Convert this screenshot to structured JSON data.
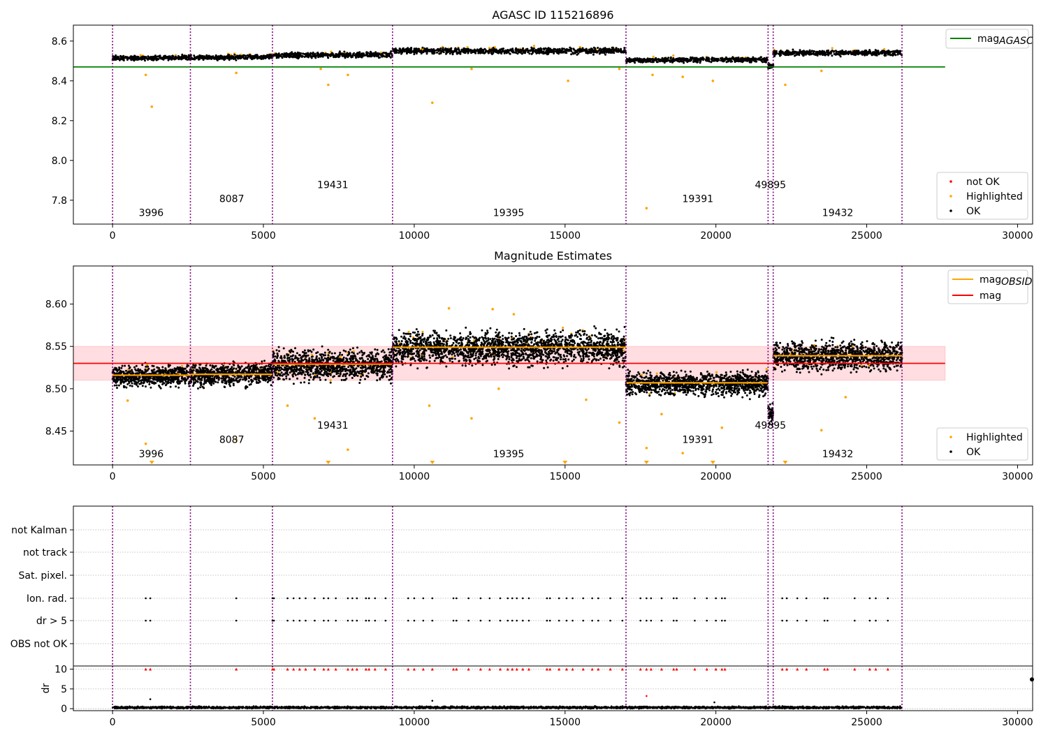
{
  "chart_data": [
    {
      "type": "scatter",
      "title": "AGASC ID 115216896",
      "xlim": [
        -1300,
        30500
      ],
      "ylim": [
        7.68,
        8.68
      ],
      "xticks": [
        0,
        5000,
        10000,
        15000,
        20000,
        25000,
        30000
      ],
      "yticks": [
        7.8,
        8.0,
        8.2,
        8.4,
        8.6
      ],
      "ytick_labels": [
        "7.8",
        "8.0",
        "8.2",
        "8.4",
        "8.6"
      ],
      "obsid_boundaries": [
        0,
        2580,
        5300,
        9280,
        17020,
        21730,
        21900,
        26170
      ],
      "obsid_labels": [
        {
          "text": "3996",
          "x": 1280,
          "y": 7.72
        },
        {
          "text": "8087",
          "x": 3950,
          "y": 7.79
        },
        {
          "text": "19431",
          "x": 7300,
          "y": 7.86
        },
        {
          "text": "19395",
          "x": 13130,
          "y": 7.72
        },
        {
          "text": "19391",
          "x": 19400,
          "y": 7.79
        },
        {
          "text": "49895",
          "x": 21810,
          "y": 7.86
        },
        {
          "text": "19432",
          "x": 24040,
          "y": 7.72
        }
      ],
      "reference_line": {
        "name": "mag",
        "subscript": "AGASC",
        "value": 8.47,
        "x": [
          -1300,
          27600
        ],
        "color": "#008000"
      },
      "segments": [
        {
          "x": [
            0,
            2580
          ],
          "mean": 8.515,
          "slope": 0.004,
          "noise": 0.008
        },
        {
          "x": [
            2580,
            5300
          ],
          "mean": 8.518,
          "slope": 0.005,
          "noise": 0.008
        },
        {
          "x": [
            5300,
            9280
          ],
          "mean": 8.53,
          "slope": 0.004,
          "noise": 0.009
        },
        {
          "x": [
            9280,
            17020
          ],
          "mean": 8.55,
          "slope": 0.0,
          "noise": 0.01
        },
        {
          "x": [
            17020,
            21730
          ],
          "mean": 8.505,
          "slope": 0.003,
          "noise": 0.008
        },
        {
          "x": [
            21730,
            21900
          ],
          "mean": 8.475,
          "slope": 0.0,
          "noise": 0.008
        },
        {
          "x": [
            21900,
            26170
          ],
          "mean": 8.54,
          "slope": 0.0,
          "noise": 0.009
        }
      ],
      "outliers": [
        [
          1100,
          8.43
        ],
        [
          1300,
          8.27
        ],
        [
          4100,
          8.44
        ],
        [
          7150,
          8.38
        ],
        [
          7800,
          8.43
        ],
        [
          10600,
          8.29
        ],
        [
          11900,
          8.46
        ],
        [
          15100,
          8.4
        ],
        [
          17700,
          7.76
        ],
        [
          17900,
          8.43
        ],
        [
          18900,
          8.42
        ],
        [
          19900,
          8.4
        ],
        [
          22300,
          8.38
        ],
        [
          23500,
          8.45
        ],
        [
          6900,
          8.46
        ],
        [
          16800,
          8.46
        ]
      ],
      "legends": [
        {
          "position": "top-right",
          "items": [
            {
              "label": "mag",
              "subscript": "AGASC",
              "kind": "line",
              "color": "#008000"
            }
          ]
        },
        {
          "position": "bottom-right",
          "items": [
            {
              "label": "not OK",
              "kind": "dot",
              "color": "#ff0000"
            },
            {
              "label": "Highlighted",
              "kind": "dot",
              "color": "#ffa500"
            },
            {
              "label": "OK",
              "kind": "dot",
              "color": "#000000"
            }
          ]
        }
      ]
    },
    {
      "type": "scatter",
      "title": "Magnitude Estimates",
      "xlim": [
        -1300,
        30500
      ],
      "ylim": [
        8.41,
        8.645
      ],
      "xticks": [
        0,
        5000,
        10000,
        15000,
        20000,
        25000,
        30000
      ],
      "yticks": [
        8.45,
        8.5,
        8.55,
        8.6
      ],
      "ytick_labels": [
        "8.45",
        "8.50",
        "8.55",
        "8.60"
      ],
      "obsid_boundaries": [
        0,
        2580,
        5300,
        9280,
        17020,
        21730,
        21900,
        26170
      ],
      "obsid_labels": [
        {
          "text": "3996",
          "x": 1280,
          "y": 8.419
        },
        {
          "text": "8087",
          "x": 3950,
          "y": 8.436
        },
        {
          "text": "19431",
          "x": 7300,
          "y": 8.453
        },
        {
          "text": "19395",
          "x": 13130,
          "y": 8.419
        },
        {
          "text": "19391",
          "x": 19400,
          "y": 8.436
        },
        {
          "text": "49895",
          "x": 21810,
          "y": 8.453
        },
        {
          "text": "19432",
          "x": 24040,
          "y": 8.419
        }
      ],
      "mean_band": {
        "value": 8.53,
        "low": 8.51,
        "high": 8.55,
        "x": [
          -1300,
          27600
        ],
        "color": "#ff0000"
      },
      "obsid_means": [
        {
          "x": [
            0,
            2580
          ],
          "value": 8.516
        },
        {
          "x": [
            2580,
            5300
          ],
          "value": 8.517
        },
        {
          "x": [
            5300,
            9280
          ],
          "value": 8.529
        },
        {
          "x": [
            9280,
            17020
          ],
          "value": 8.549
        },
        {
          "x": [
            17020,
            21730
          ],
          "value": 8.507
        },
        {
          "x": [
            21900,
            26170
          ],
          "value": 8.539
        }
      ],
      "segments": [
        {
          "x": [
            0,
            2580
          ],
          "mean": 8.515,
          "slope": 0.002,
          "noise": 0.008
        },
        {
          "x": [
            2580,
            5300
          ],
          "mean": 8.517,
          "slope": 0.003,
          "noise": 0.009
        },
        {
          "x": [
            5300,
            9280
          ],
          "mean": 8.528,
          "slope": 0.0,
          "noise": 0.012
        },
        {
          "x": [
            9280,
            17020
          ],
          "mean": 8.548,
          "slope": 0.0,
          "noise": 0.013
        },
        {
          "x": [
            17020,
            21730
          ],
          "mean": 8.506,
          "slope": 0.0,
          "noise": 0.009
        },
        {
          "x": [
            21730,
            21900
          ],
          "mean": 8.47,
          "slope": 0.0,
          "noise": 0.008
        },
        {
          "x": [
            21900,
            26170
          ],
          "mean": 8.538,
          "slope": 0.0,
          "noise": 0.011
        }
      ],
      "outliers": [
        [
          1100,
          8.435
        ],
        [
          500,
          8.486
        ],
        [
          4100,
          8.44
        ],
        [
          5800,
          8.48
        ],
        [
          6700,
          8.465
        ],
        [
          7800,
          8.428
        ],
        [
          10500,
          8.48
        ],
        [
          11900,
          8.465
        ],
        [
          12800,
          8.5
        ],
        [
          15700,
          8.487
        ],
        [
          16800,
          8.46
        ],
        [
          17700,
          8.43
        ],
        [
          18200,
          8.47
        ],
        [
          18900,
          8.424
        ],
        [
          20200,
          8.454
        ],
        [
          23500,
          8.451
        ],
        [
          24300,
          8.49
        ],
        [
          11150,
          8.595
        ],
        [
          12600,
          8.594
        ],
        [
          13300,
          8.588
        ]
      ],
      "bottom_markers_x": [
        1300,
        7150,
        10600,
        15000,
        17700,
        19900,
        22300
      ],
      "legends": [
        {
          "position": "top-right",
          "items": [
            {
              "label": "mag",
              "subscript": "OBSID",
              "kind": "line",
              "color": "#ffa500"
            },
            {
              "label": "mag",
              "kind": "line",
              "color": "#ff0000"
            }
          ]
        },
        {
          "position": "bottom-right",
          "items": [
            {
              "label": "Highlighted",
              "kind": "dot",
              "color": "#ffa500"
            },
            {
              "label": "OK",
              "kind": "dot",
              "color": "#000000"
            }
          ]
        }
      ]
    },
    {
      "type": "scatter",
      "title": "",
      "xlim": [
        -1300,
        30500
      ],
      "categories": [
        "not Kalman",
        "not track",
        "Sat. pixel.",
        "Ion. rad.",
        "dr > 5",
        "OBS not OK"
      ],
      "obsid_boundaries": [
        0,
        2580,
        5300,
        9280,
        17020,
        21730,
        21900,
        26170
      ],
      "flag_x": [
        1100,
        1250,
        4100,
        5300,
        5350,
        5800,
        6000,
        6200,
        6400,
        6700,
        7000,
        7150,
        7400,
        7800,
        7950,
        8100,
        8400,
        8500,
        8700,
        9050,
        9800,
        10000,
        10300,
        10600,
        11300,
        11400,
        11800,
        12200,
        12500,
        12850,
        13100,
        13250,
        13400,
        13600,
        13800,
        14400,
        14500,
        14800,
        15050,
        15250,
        15600,
        15900,
        16100,
        16500,
        16900,
        17500,
        17700,
        17850,
        18200,
        18600,
        18700,
        19300,
        19700,
        20000,
        20200,
        20300,
        22200,
        22350,
        22700,
        23000,
        23600,
        23700,
        24600,
        25100,
        25300,
        25700
      ]
    },
    {
      "type": "scatter",
      "title": "",
      "ylabel": "dr",
      "xlim": [
        -1300,
        30500
      ],
      "ylim": [
        -0.5,
        10.8
      ],
      "xticks": [
        0,
        5000,
        10000,
        15000,
        20000,
        25000,
        30000
      ],
      "yticks": [
        0,
        5,
        10
      ],
      "ytick_labels": [
        "0",
        "5",
        "10"
      ],
      "obsid_boundaries": [
        0,
        2580,
        5300,
        9280,
        17020,
        21730,
        21900,
        26170
      ],
      "segments_x": [
        0,
        26170
      ],
      "baseline_dr": 0.3,
      "dr_outliers": [
        [
          1250,
          2.4
        ],
        [
          17700,
          3.2
        ],
        [
          10600,
          2.0
        ],
        [
          19950,
          1.6
        ]
      ],
      "edge_point": [
        30500,
        7.4
      ],
      "clipped_value": 10
    }
  ],
  "colors": {
    "boundary": "#800080",
    "ok": "#000000",
    "highlighted": "#ffa500",
    "not_ok": "#ff0000",
    "agasc": "#008000",
    "mean": "#ff0000",
    "obsid_mean": "#ffa500",
    "band": "#ffdde0",
    "grid": "#b0b0b0"
  }
}
